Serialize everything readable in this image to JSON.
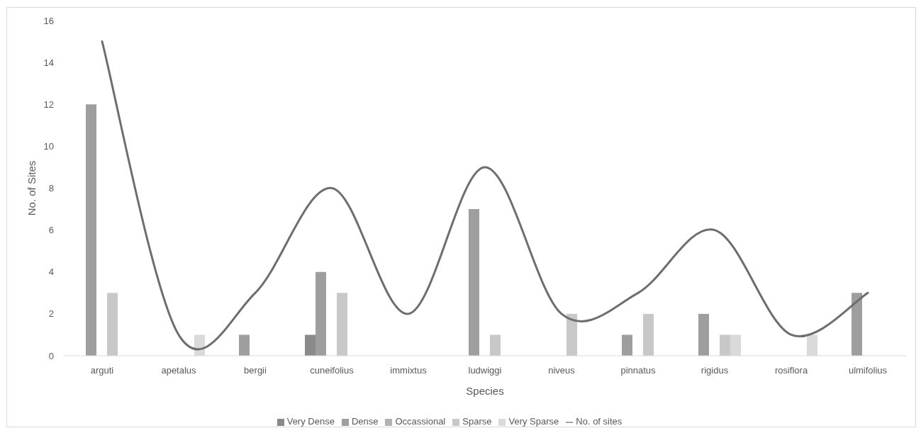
{
  "chart_data": {
    "type": "bar",
    "xlabel": "Species",
    "ylabel": "No. of Sites",
    "categories": [
      "arguti",
      "apetalus",
      "bergii",
      "cuneifolius",
      "immixtus",
      "ludwiggi",
      "niveus",
      "pinnatus",
      "rigidus",
      "rosiflora",
      "ulmifolius"
    ],
    "series": [
      {
        "name": "Very Dense",
        "color": "#8a8a8a",
        "values": [
          null,
          null,
          null,
          1,
          null,
          null,
          null,
          null,
          null,
          null,
          null
        ]
      },
      {
        "name": "Dense",
        "color": "#9e9e9e",
        "values": [
          12,
          null,
          1,
          4,
          null,
          7,
          null,
          1,
          2,
          null,
          3
        ]
      },
      {
        "name": "Occassional",
        "color": "#b2b2b2",
        "values": [
          null,
          null,
          null,
          null,
          null,
          null,
          null,
          null,
          null,
          null,
          null
        ]
      },
      {
        "name": "Sparse",
        "color": "#c8c8c8",
        "values": [
          3,
          null,
          null,
          3,
          null,
          1,
          2,
          2,
          1,
          null,
          null
        ]
      },
      {
        "name": "Very Sparse",
        "color": "#dadada",
        "values": [
          null,
          1,
          null,
          null,
          null,
          null,
          null,
          null,
          1,
          1,
          null
        ]
      },
      {
        "name": "No. of sites",
        "type": "line",
        "color": "#6e6e6e",
        "values": [
          15,
          1,
          3,
          8,
          2,
          9,
          2,
          3,
          6,
          1,
          3
        ]
      }
    ],
    "ylim": [
      0,
      16
    ],
    "yticks": [
      0,
      2,
      4,
      6,
      8,
      10,
      12,
      14,
      16
    ],
    "legend": "bottom",
    "marker": "none"
  }
}
